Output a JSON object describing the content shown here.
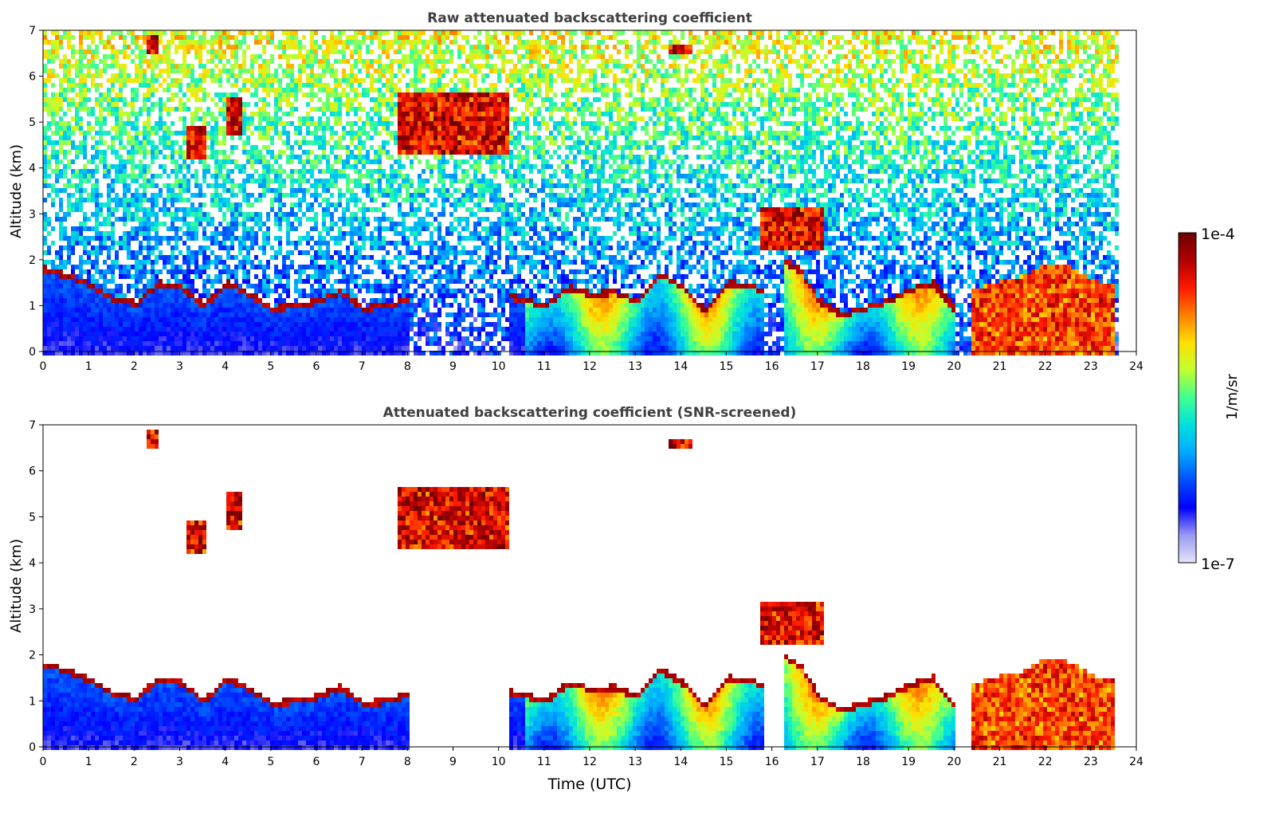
{
  "charts": [
    {
      "id": "raw",
      "type": "heatmap",
      "title": "Raw attenuated backscattering coefficient",
      "xlabel": "",
      "ylabel": "Altitude (km)",
      "xlim": [
        0,
        24
      ],
      "ylim": [
        0,
        7
      ],
      "xticks": [
        "0",
        "1",
        "2",
        "3",
        "4",
        "5",
        "6",
        "7",
        "8",
        "9",
        "10",
        "11",
        "12",
        "13",
        "14",
        "15",
        "16",
        "17",
        "18",
        "19",
        "20",
        "21",
        "22",
        "23",
        "24"
      ],
      "yticks": [
        "0",
        "1",
        "2",
        "3",
        "4",
        "5",
        "6",
        "7"
      ],
      "data_end_hour": 23.6,
      "screened": false
    },
    {
      "id": "screened",
      "type": "heatmap",
      "title": "Attenuated backscattering coefficient (SNR-screened)",
      "xlabel": "Time (UTC)",
      "ylabel": "Altitude (km)",
      "xlim": [
        0,
        24
      ],
      "ylim": [
        0,
        7
      ],
      "xticks": [
        "0",
        "1",
        "2",
        "3",
        "4",
        "5",
        "6",
        "7",
        "8",
        "9",
        "10",
        "11",
        "12",
        "13",
        "14",
        "15",
        "16",
        "17",
        "18",
        "19",
        "20",
        "21",
        "22",
        "23",
        "24"
      ],
      "yticks": [
        "0",
        "1",
        "2",
        "3",
        "4",
        "5",
        "6",
        "7"
      ],
      "data_end_hour": 23.6,
      "screened": true
    }
  ],
  "colorbar": {
    "label": "1/m/sr",
    "min_label": "1e-7",
    "max_label": "1e-4",
    "scale": "log",
    "range": [
      1e-07,
      0.0001
    ],
    "colors": [
      "#e4e4f8",
      "#9a9af2",
      "#0000ff",
      "#0050ff",
      "#00a8ff",
      "#00e0e0",
      "#40ff90",
      "#c0ff30",
      "#ffe000",
      "#ff8000",
      "#ff1800",
      "#b00000",
      "#6e0000"
    ]
  },
  "cloud_features": [
    {
      "kind": "pbl_top",
      "hours": [
        0,
        0.5,
        1,
        1.5,
        2,
        2.5,
        3,
        3.5,
        4,
        4.5,
        5,
        5.5,
        6,
        6.5,
        7,
        7.5,
        8
      ],
      "altitude_km": [
        1.9,
        1.75,
        1.55,
        1.25,
        1.15,
        1.6,
        1.5,
        1.1,
        1.6,
        1.35,
        1.05,
        1.1,
        1.2,
        1.4,
        1.05,
        1.1,
        1.25
      ]
    },
    {
      "kind": "pbl_top",
      "hours": [
        10.2,
        11,
        11.5,
        12,
        12.5,
        13,
        13.5,
        14,
        14.5,
        15,
        15.5,
        15.8
      ],
      "altitude_km": [
        1.3,
        1.1,
        1.5,
        1.35,
        1.4,
        1.2,
        1.8,
        1.5,
        1.0,
        1.6,
        1.55,
        1.4
      ]
    },
    {
      "kind": "pbl_top",
      "hours": [
        16.2,
        16.6,
        17,
        17.5,
        18,
        18.5,
        19,
        19.5,
        20
      ],
      "altitude_km": [
        2.1,
        1.85,
        1.2,
        0.9,
        1.05,
        1.2,
        1.45,
        1.6,
        1.0
      ]
    },
    {
      "kind": "pbl_top",
      "hours": [
        20.3,
        21,
        21.5,
        22,
        22.5,
        23,
        23.5
      ],
      "altitude_km": [
        1.4,
        1.6,
        1.7,
        2.0,
        1.9,
        1.6,
        1.5
      ]
    },
    {
      "kind": "cloud",
      "hours": [
        2.2,
        2.5
      ],
      "altitude_km": [
        6.5,
        6.9
      ]
    },
    {
      "kind": "cloud",
      "hours": [
        3.1,
        3.5
      ],
      "altitude_km": [
        4.2,
        5.0
      ]
    },
    {
      "kind": "cloud",
      "hours": [
        4.0,
        4.3
      ],
      "altitude_km": [
        4.8,
        5.6
      ]
    },
    {
      "kind": "cloud",
      "hours": [
        7.7,
        10.2
      ],
      "altitude_km": [
        4.3,
        5.7
      ]
    },
    {
      "kind": "cloud",
      "hours": [
        13.7,
        14.2
      ],
      "altitude_km": [
        6.5,
        6.7
      ]
    },
    {
      "kind": "cloud",
      "hours": [
        15.7,
        17.1
      ],
      "altitude_km": [
        2.3,
        3.2
      ]
    }
  ]
}
